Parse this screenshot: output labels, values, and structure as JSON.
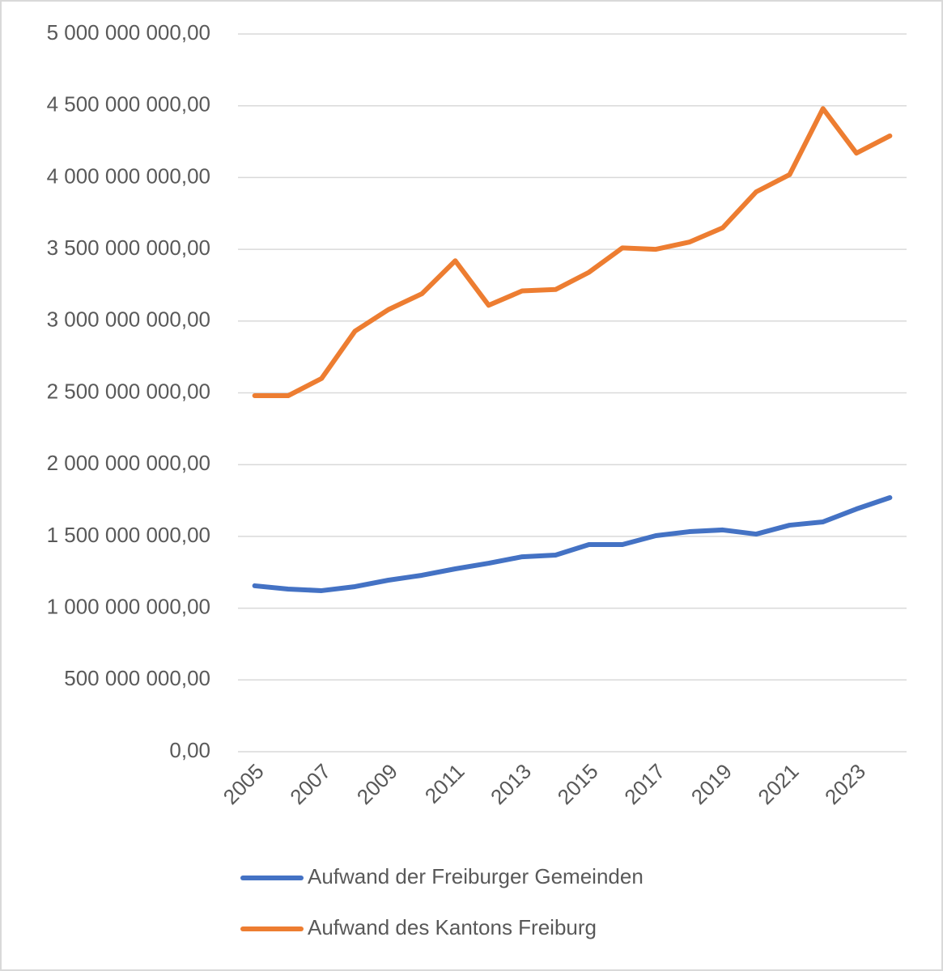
{
  "chart_data": {
    "type": "line",
    "categories": [
      "2005",
      null,
      "2007",
      null,
      "2009",
      null,
      "2011",
      null,
      "2013",
      null,
      "2015",
      null,
      "2017",
      null,
      "2019",
      null,
      "2021",
      null,
      "2023",
      null
    ],
    "series": [
      {
        "name": "Aufwand der Freiburger Gemeinden",
        "color": "#4472c4",
        "values": [
          1156000000,
          1133000000,
          1122000000,
          1150000000,
          1195000000,
          1229000000,
          1274000000,
          1313000000,
          1358000000,
          1370000000,
          1443000000,
          1443000000,
          1505000000,
          1533000000,
          1545000000,
          1516000000,
          1578000000,
          1601000000,
          1691000000,
          1770000000
        ]
      },
      {
        "name": "Aufwand des Kantons Freiburg",
        "color": "#ed7d31",
        "values": [
          2480000000,
          2480000000,
          2600000000,
          2930000000,
          3080000000,
          3190000000,
          3420000000,
          3110000000,
          3210000000,
          3220000000,
          3340000000,
          3510000000,
          3500000000,
          3550000000,
          3650000000,
          3900000000,
          4020000000,
          4480000000,
          4170000000,
          4290000000
        ]
      }
    ],
    "ylim": [
      0,
      5000000000
    ],
    "yticks": [
      {
        "value": 0,
        "label": "0,00"
      },
      {
        "value": 500000000,
        "label": "500 000 000,00"
      },
      {
        "value": 1000000000,
        "label": "1 000 000 000,00"
      },
      {
        "value": 1500000000,
        "label": "1 500 000 000,00"
      },
      {
        "value": 2000000000,
        "label": "2 000 000 000,00"
      },
      {
        "value": 2500000000,
        "label": "2 500 000 000,00"
      },
      {
        "value": 3000000000,
        "label": "3 000 000 000,00"
      },
      {
        "value": 3500000000,
        "label": "3 500 000 000,00"
      },
      {
        "value": 4000000000,
        "label": "4 000 000 000,00"
      },
      {
        "value": 4500000000,
        "label": "4 500 000 000,00"
      },
      {
        "value": 5000000000,
        "label": "5 000 000 000,00"
      }
    ],
    "grid": true,
    "legend": "bottom"
  }
}
